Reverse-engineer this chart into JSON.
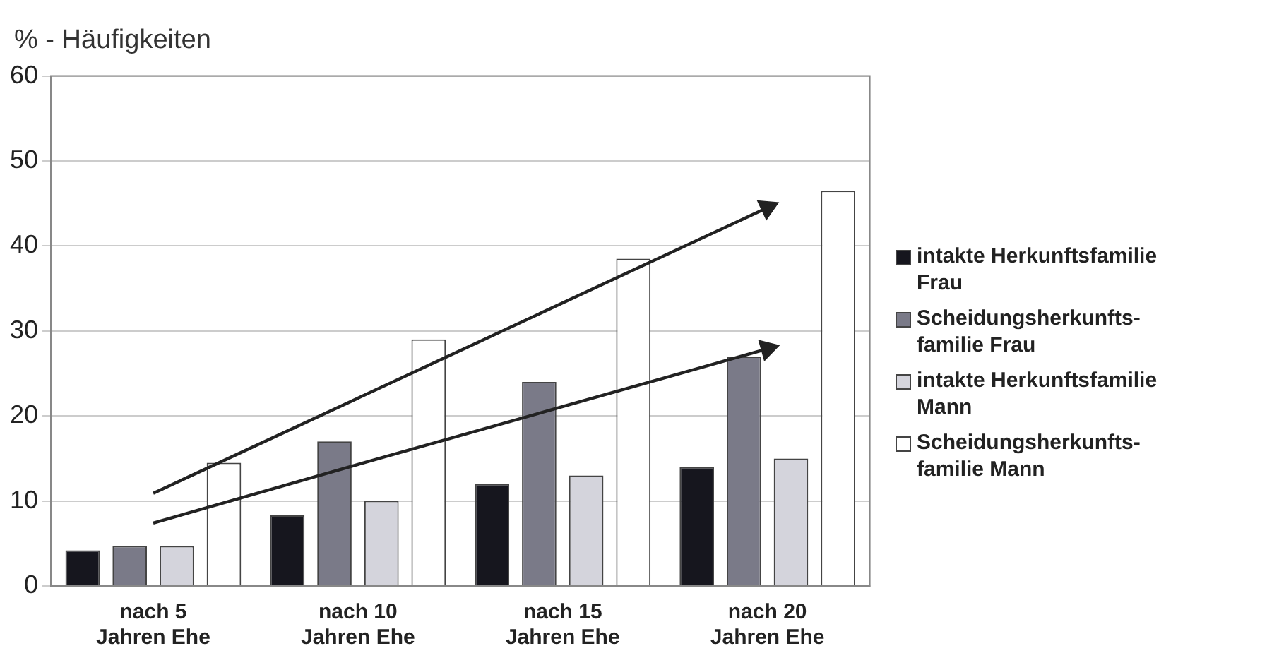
{
  "chart_data": {
    "type": "bar",
    "ylabel": "% - Häufigkeiten",
    "categories": [
      "nach 5 Jahren Ehe",
      "nach 10 Jahren Ehe",
      "nach 15 Jahren Ehe",
      "nach 20 Jahren Ehe"
    ],
    "series": [
      {
        "name": "intakte Herkunftsfamilie Frau",
        "color": "#16161e",
        "values": [
          4.2,
          8.3,
          12,
          14
        ]
      },
      {
        "name": "Scheidungsherkunfts-familie Frau",
        "color": "#7a7a88",
        "values": [
          4.7,
          17,
          24,
          27
        ]
      },
      {
        "name": "intakte Herkunftsfamilie Mann",
        "color": "#d4d4dc",
        "values": [
          4.7,
          10,
          13,
          15
        ]
      },
      {
        "name": "Scheidungsherkunfts-familie Mann",
        "color": "#ffffff",
        "values": [
          14.5,
          29,
          38.5,
          46.5
        ]
      },
      {
        "type": "line",
        "color": "#222222",
        "values": [
          10.9,
          22.1,
          33.3,
          44.5
        ]
      },
      {
        "type": "line",
        "color": "#222222",
        "values": [
          7.4,
          14.3,
          21.1,
          27.9
        ]
      }
    ],
    "ylim": [
      0,
      60
    ],
    "yticks": [
      0,
      10,
      20,
      30,
      40,
      50,
      60
    ],
    "grid": "y",
    "legend": "right"
  }
}
